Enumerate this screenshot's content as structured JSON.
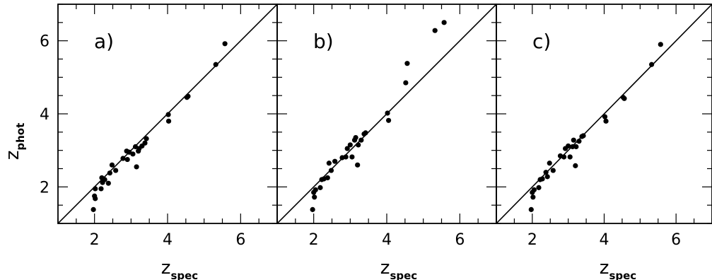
{
  "figure": {
    "ylabel": "z",
    "ylabel_sub": "phot"
  },
  "chart_data": [
    {
      "type": "scatter",
      "panel_label": "a)",
      "xlabel": "z",
      "xlabel_sub": "spec",
      "xlim": [
        1,
        7
      ],
      "ylim": [
        1,
        7
      ],
      "xticks": [
        2,
        4,
        6
      ],
      "yticks": [
        2,
        4,
        6
      ],
      "reference_line": "y = x",
      "marker_color": "#000000",
      "x": [
        1.97,
        2.0,
        2.02,
        2.02,
        2.18,
        2.2,
        2.22,
        2.28,
        2.38,
        2.42,
        2.48,
        2.58,
        2.78,
        2.88,
        2.9,
        2.95,
        3.05,
        3.12,
        3.15,
        3.2,
        3.22,
        3.3,
        3.38,
        3.42,
        4.02,
        4.03,
        4.53,
        4.56,
        5.32,
        5.57
      ],
      "y": [
        1.38,
        1.75,
        1.95,
        1.68,
        1.95,
        2.25,
        2.12,
        2.2,
        2.1,
        2.38,
        2.6,
        2.45,
        2.78,
        2.98,
        2.75,
        2.95,
        2.9,
        3.1,
        2.55,
        2.98,
        3.05,
        3.12,
        3.2,
        3.32,
        3.98,
        3.8,
        4.45,
        4.48,
        5.35,
        5.92
      ]
    },
    {
      "type": "scatter",
      "panel_label": "b)",
      "xlabel": "z",
      "xlabel_sub": "spec",
      "xlim": [
        1,
        7
      ],
      "ylim": [
        1,
        7
      ],
      "xticks": [
        2,
        4,
        6
      ],
      "yticks": [
        2,
        4,
        6
      ],
      "reference_line": "y = x",
      "marker_color": "#000000",
      "x": [
        1.97,
        2.0,
        2.02,
        2.05,
        2.18,
        2.22,
        2.28,
        2.38,
        2.42,
        2.48,
        2.58,
        2.78,
        2.88,
        2.92,
        3.0,
        3.05,
        3.12,
        3.15,
        3.2,
        3.22,
        3.3,
        3.38,
        3.42,
        4.02,
        4.05,
        4.52,
        4.56,
        5.32,
        5.57
      ],
      "y": [
        1.38,
        1.85,
        1.72,
        1.92,
        1.98,
        2.2,
        2.22,
        2.25,
        2.65,
        2.45,
        2.7,
        2.8,
        2.82,
        3.05,
        3.15,
        2.82,
        3.28,
        3.35,
        2.6,
        3.15,
        3.28,
        3.45,
        3.48,
        4.02,
        3.82,
        4.85,
        5.38,
        6.28,
        6.5
      ]
    },
    {
      "type": "scatter",
      "panel_label": "c)",
      "xlabel": "z",
      "xlabel_sub": "spec",
      "xlim": [
        1,
        7
      ],
      "ylim": [
        1,
        7
      ],
      "xticks": [
        2,
        4,
        6
      ],
      "yticks": [
        2,
        4,
        6
      ],
      "reference_line": "y = x",
      "marker_color": "#000000",
      "x": [
        1.97,
        2.0,
        2.02,
        2.05,
        2.18,
        2.22,
        2.28,
        2.38,
        2.42,
        2.48,
        2.58,
        2.78,
        2.88,
        2.92,
        3.0,
        3.05,
        3.12,
        3.15,
        3.2,
        3.22,
        3.3,
        3.38,
        3.42,
        4.02,
        4.05,
        4.53,
        4.56,
        5.32,
        5.57
      ],
      "y": [
        1.38,
        1.85,
        1.72,
        1.92,
        1.98,
        2.2,
        2.22,
        2.4,
        2.28,
        2.65,
        2.45,
        2.85,
        2.82,
        3.05,
        3.12,
        2.82,
        3.1,
        3.28,
        2.58,
        3.1,
        3.25,
        3.38,
        3.4,
        3.92,
        3.8,
        4.45,
        4.42,
        5.35,
        5.9
      ]
    }
  ]
}
